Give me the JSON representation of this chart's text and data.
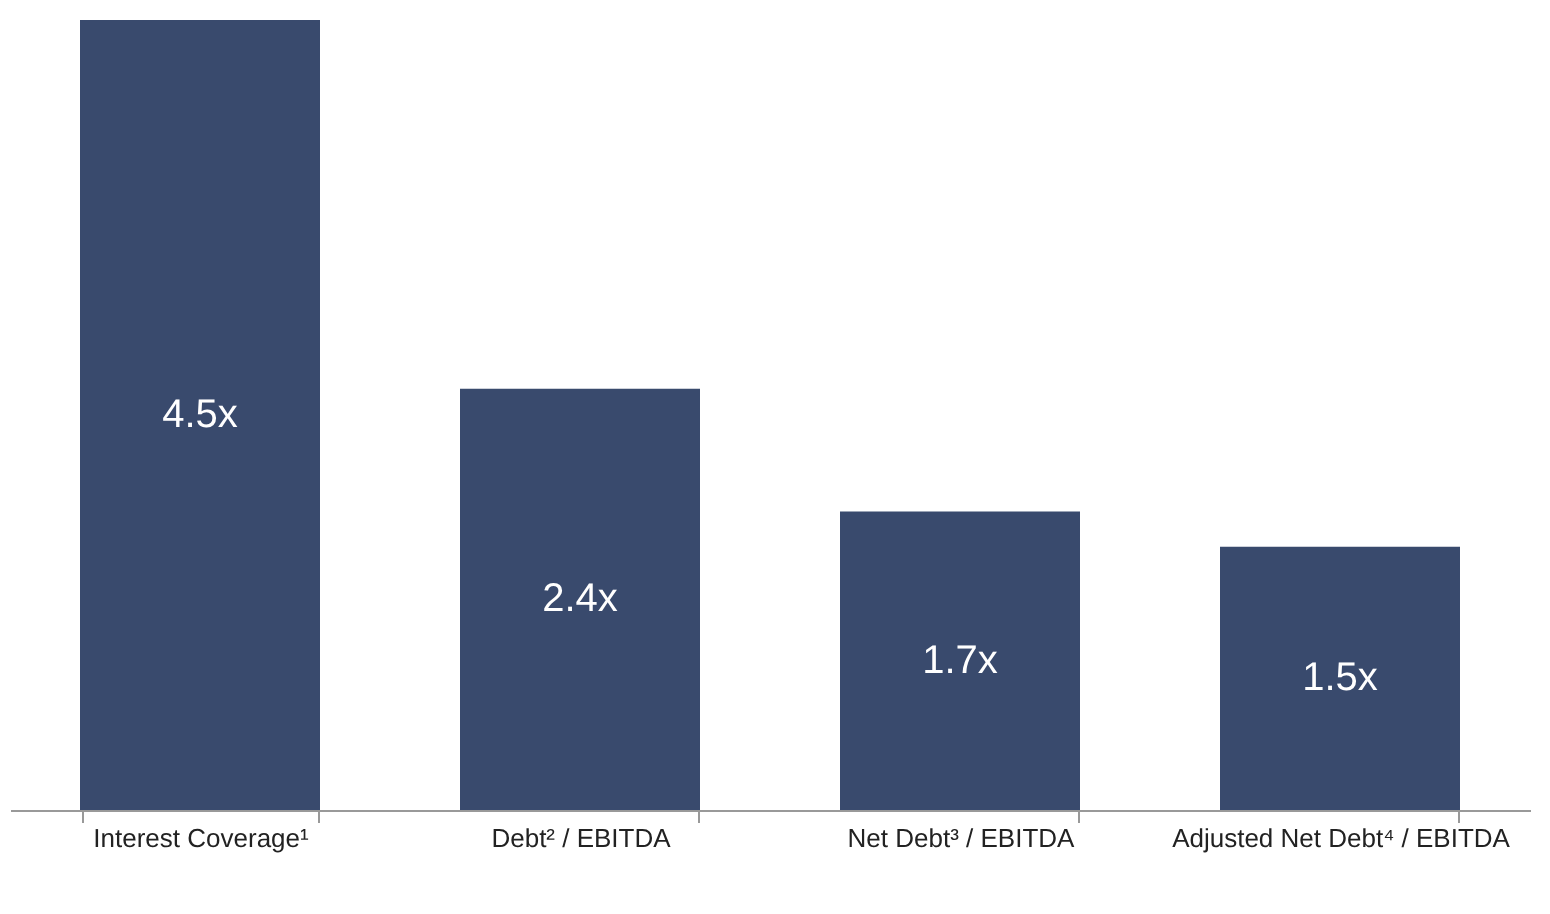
{
  "chart_data": {
    "type": "bar",
    "categories": [
      "Interest Coverage¹",
      "Debt² / EBITDA",
      "Net Debt³ / EBITDA",
      "Adjusted Net Debt⁴ / EBITDA"
    ],
    "values": [
      4.5,
      2.4,
      1.7,
      1.5
    ],
    "value_labels": [
      "4.5x",
      "2.4x",
      "1.7x",
      "1.5x"
    ],
    "color": "#394a6d",
    "tick_labels": "x",
    "grid": false
  }
}
